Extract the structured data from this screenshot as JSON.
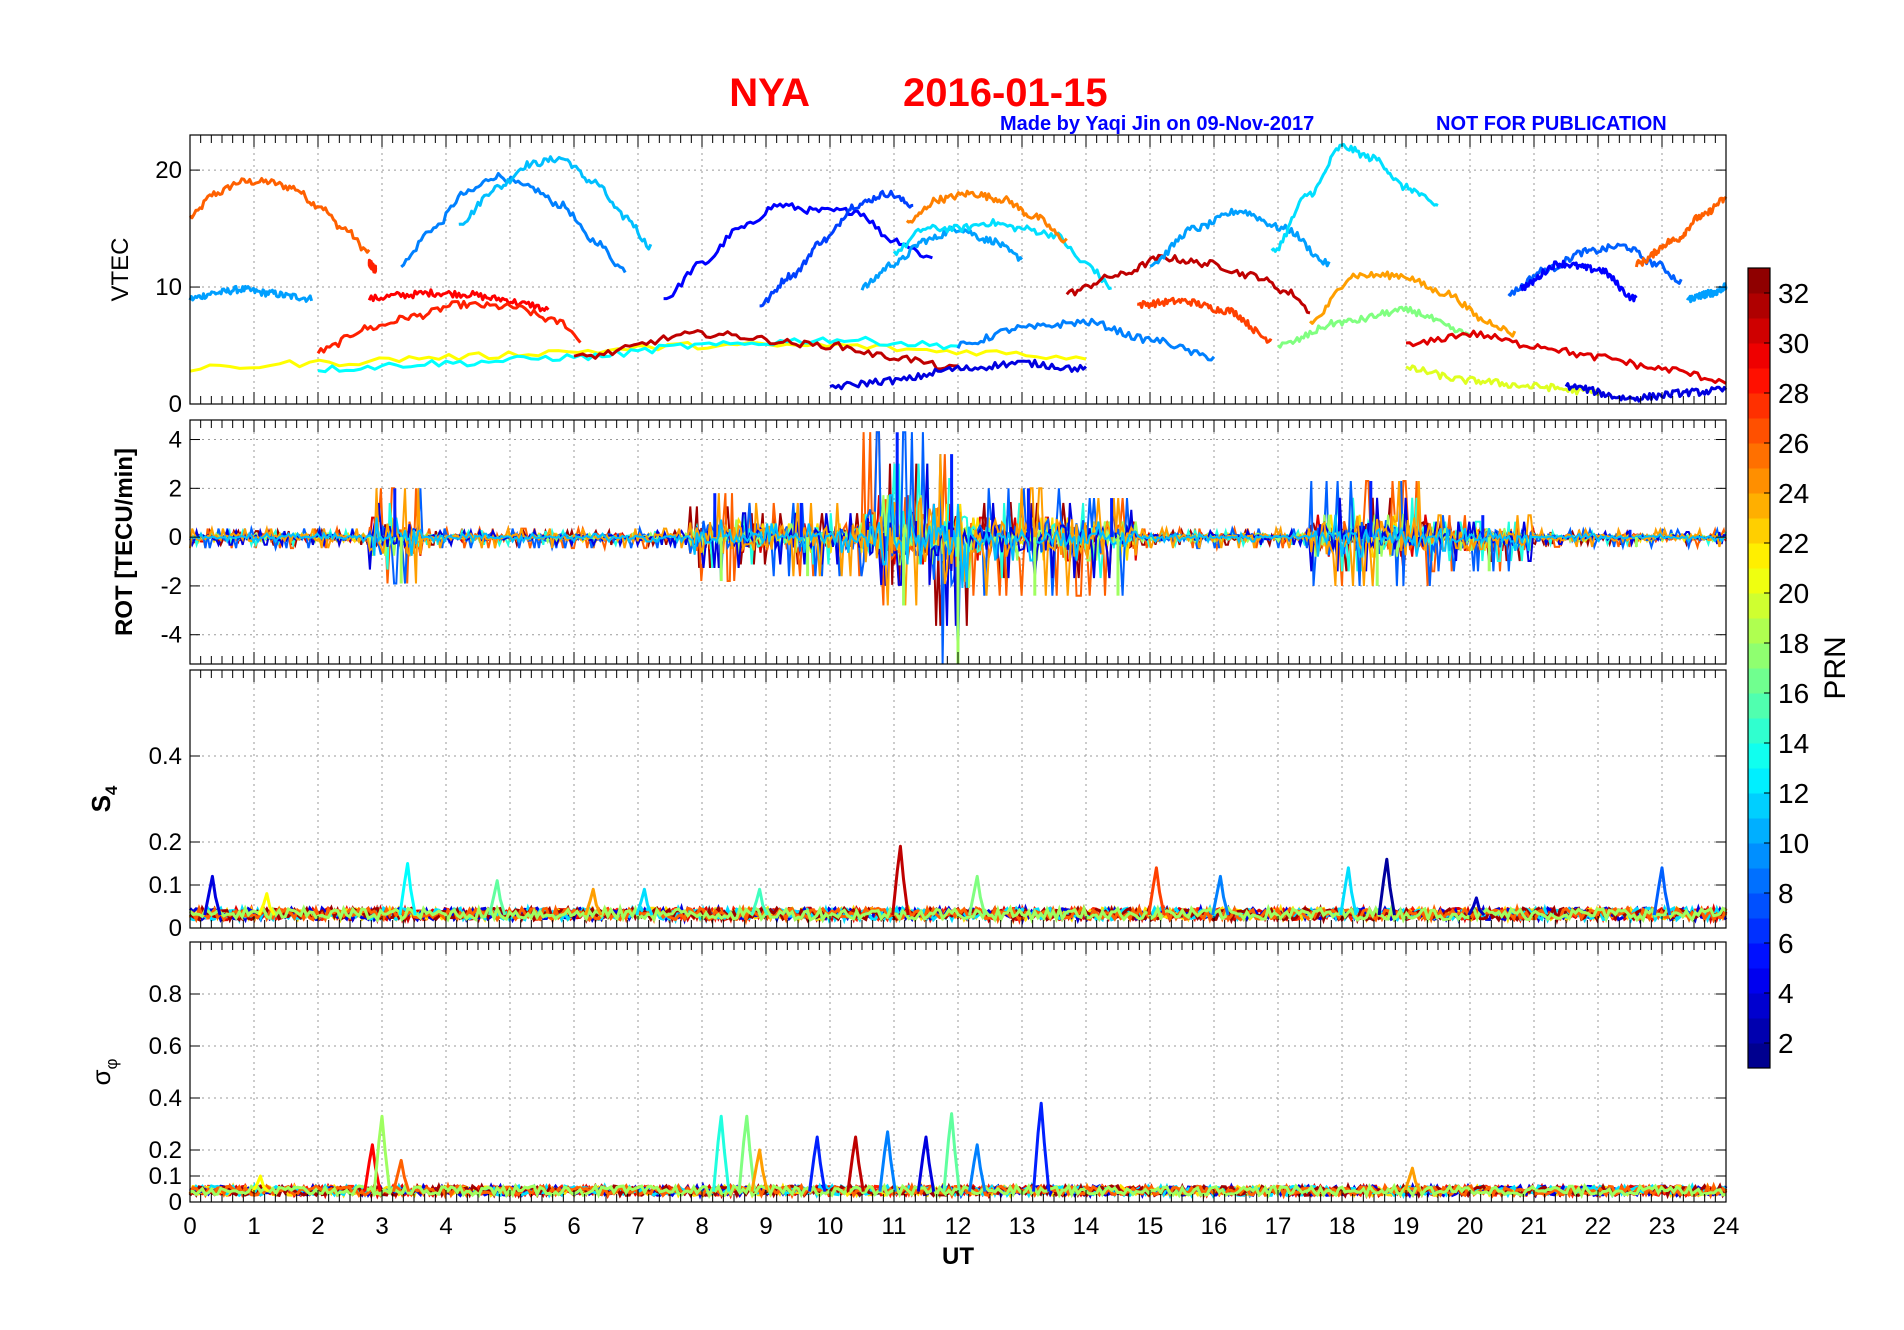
{
  "figure": {
    "station": "NYA",
    "date": "2016-01-15",
    "credit": "Made by Yaqi Jin on 09-Nov-2017",
    "notice": "NOT FOR PUBLICATION",
    "title_color": "#ff0000",
    "credit_color": "#0000ff"
  },
  "chart_data": [
    {
      "type": "line",
      "panel": "vtec",
      "ylabel": "VTEC",
      "xlim": [
        0,
        24
      ],
      "ylim": [
        0,
        23
      ],
      "yticks": [
        0,
        10,
        20
      ],
      "series": [
        {
          "prn": 26,
          "x": [
            0,
            0.4,
            0.8,
            1.2,
            1.6,
            2.0,
            2.4,
            2.8
          ],
          "values": [
            16,
            18,
            19,
            19,
            18.5,
            17,
            15,
            13
          ]
        },
        {
          "prn": 28,
          "x": [
            2.8,
            2.9
          ],
          "values": [
            12,
            11.5
          ]
        },
        {
          "prn": 10,
          "x": [
            0,
            0.4,
            0.8,
            1.2,
            1.6,
            1.9
          ],
          "values": [
            9,
            9.5,
            9.8,
            9.5,
            9.2,
            9
          ]
        },
        {
          "prn": 9,
          "x": [
            3.3,
            3.8,
            4.3,
            4.8,
            5.3,
            5.8,
            6.3,
            6.8
          ],
          "values": [
            12,
            15,
            18,
            19.5,
            18.5,
            17,
            14,
            11.5
          ]
        },
        {
          "prn": 11,
          "x": [
            4.2,
            4.8,
            5.3,
            5.8,
            6.3,
            6.8,
            7.2
          ],
          "values": [
            15.5,
            18.5,
            20.5,
            21,
            19,
            16,
            13.5
          ]
        },
        {
          "prn": 29,
          "x": [
            2.8,
            3.3,
            3.8,
            4.3,
            4.8,
            5.3,
            5.6
          ],
          "values": [
            9,
            9.3,
            9.5,
            9.4,
            9,
            8.5,
            8
          ]
        },
        {
          "prn": 28,
          "x": [
            2.0,
            2.8,
            3.5,
            4.2,
            5.0,
            5.8,
            6.1
          ],
          "values": [
            4.5,
            6.5,
            7.5,
            8.5,
            8.3,
            7,
            5.5
          ]
        },
        {
          "prn": 5,
          "x": [
            7.4,
            8.0,
            8.6,
            9.2,
            9.8,
            10.4,
            11.0,
            11.6
          ],
          "values": [
            9,
            12,
            15,
            17,
            16.5,
            16.5,
            14,
            12.5
          ]
        },
        {
          "prn": 7,
          "x": [
            8.9,
            9.4,
            9.9,
            10.4,
            10.9,
            11.3
          ],
          "values": [
            8.5,
            11,
            14,
            17,
            18,
            17
          ]
        },
        {
          "prn": 10,
          "x": [
            10.5,
            11.0,
            11.5,
            12.0,
            12.5,
            13.0
          ],
          "values": [
            10,
            12,
            14,
            15,
            14,
            12.5
          ]
        },
        {
          "prn": 12,
          "x": [
            11.0,
            11.5,
            12.0,
            12.5,
            13.0,
            13.5,
            14.0,
            14.4
          ],
          "values": [
            13,
            15,
            15,
            15.5,
            15,
            14.5,
            12,
            10
          ]
        },
        {
          "prn": 25,
          "x": [
            11.2,
            11.7,
            12.2,
            12.7,
            13.2,
            13.7
          ],
          "values": [
            15.5,
            17.5,
            18,
            17.5,
            16,
            14
          ]
        },
        {
          "prn": 31,
          "x": [
            13.7,
            14.5,
            15.2,
            15.9,
            16.6,
            17.2,
            17.5
          ],
          "values": [
            9.5,
            11,
            12.5,
            12,
            11,
            9.5,
            8
          ]
        },
        {
          "prn": 27,
          "x": [
            14.8,
            15.5,
            16.2,
            16.9
          ],
          "values": [
            8.5,
            8.8,
            8,
            5.5
          ]
        },
        {
          "prn": 10,
          "x": [
            15.0,
            15.7,
            16.4,
            17.1,
            17.8
          ],
          "values": [
            12,
            15,
            16.5,
            15,
            12
          ]
        },
        {
          "prn": 12,
          "x": [
            16.9,
            17.5,
            18.0,
            18.5,
            19.0,
            19.5
          ],
          "values": [
            13,
            18,
            22,
            21,
            18.5,
            17
          ]
        },
        {
          "prn": 24,
          "x": [
            17.5,
            18.2,
            18.9,
            19.6,
            20.3,
            20.7
          ],
          "values": [
            7,
            11,
            11,
            9.5,
            7,
            6
          ]
        },
        {
          "prn": 8,
          "x": [
            20.6,
            21.2,
            21.8,
            22.4,
            22.9,
            23.3
          ],
          "values": [
            9.5,
            11.5,
            13,
            13.5,
            12,
            10.5
          ]
        },
        {
          "prn": 5,
          "x": [
            20.8,
            21.4,
            22.0,
            22.6
          ],
          "values": [
            10,
            12,
            11.5,
            9
          ]
        },
        {
          "prn": 26,
          "x": [
            22.6,
            23.2,
            23.6,
            24.0
          ],
          "values": [
            12,
            14,
            16,
            17.5
          ]
        },
        {
          "prn": 10,
          "x": [
            23.4,
            23.8,
            24.0
          ],
          "values": [
            9,
            9.5,
            10
          ]
        },
        {
          "prn": 21,
          "x": [
            0,
            2,
            4,
            6,
            8,
            10,
            12,
            14
          ],
          "values": [
            3,
            3.5,
            4,
            4.5,
            5,
            5,
            4.5,
            4
          ]
        },
        {
          "prn": 13,
          "x": [
            2,
            4,
            6,
            8,
            10,
            12
          ],
          "values": [
            3,
            3.5,
            4,
            5,
            5.5,
            5
          ]
        },
        {
          "prn": 31,
          "x": [
            6,
            8,
            10,
            11,
            12
          ],
          "values": [
            4,
            6,
            5,
            4,
            3
          ]
        },
        {
          "prn": 4,
          "x": [
            10,
            11,
            12,
            13,
            14
          ],
          "values": [
            1.5,
            2,
            3,
            3.5,
            3
          ]
        },
        {
          "prn": 9,
          "x": [
            12,
            13,
            14,
            15,
            16
          ],
          "values": [
            5,
            6.5,
            7,
            5.5,
            4
          ]
        },
        {
          "prn": 17,
          "x": [
            17.0,
            18.0,
            19.0,
            20.0
          ],
          "values": [
            5,
            7,
            8,
            6
          ]
        },
        {
          "prn": 30,
          "x": [
            19,
            20,
            21,
            22,
            23,
            24
          ],
          "values": [
            5,
            6,
            5,
            4,
            3,
            2
          ]
        },
        {
          "prn": 20,
          "x": [
            19,
            20,
            21,
            22
          ],
          "values": [
            3,
            2,
            1.5,
            1
          ]
        },
        {
          "prn": 4,
          "x": [
            21.5,
            22.5,
            23.5,
            24.0
          ],
          "values": [
            1.5,
            0.5,
            1,
            1.2
          ]
        }
      ]
    },
    {
      "type": "line",
      "panel": "rot",
      "ylabel": "ROT [TECU/min]",
      "xlim": [
        0,
        24
      ],
      "ylim": [
        -5.2,
        4.8
      ],
      "yticks": [
        -4,
        -2,
        0,
        2,
        4
      ],
      "baseline": 0,
      "activity": [
        {
          "x": [
            2.8,
            3.6
          ],
          "max": 2.0,
          "min": -1.9
        },
        {
          "x": [
            7.8,
            8.6
          ],
          "max": 1.8,
          "min": -1.8
        },
        {
          "x": [
            8.6,
            10.5
          ],
          "max": 1.4,
          "min": -1.6
        },
        {
          "x": [
            10.5,
            11.6
          ],
          "max": 4.3,
          "min": -2.8
        },
        {
          "x": [
            11.6,
            12.2
          ],
          "max": 3.4,
          "min": -5.2
        },
        {
          "x": [
            12.2,
            14.0
          ],
          "max": 2.0,
          "min": -2.4
        },
        {
          "x": [
            14.0,
            14.8
          ],
          "max": 1.6,
          "min": -2.4
        },
        {
          "x": [
            17.5,
            19.4
          ],
          "max": 2.3,
          "min": -2.0
        },
        {
          "x": [
            19.4,
            21.0
          ],
          "max": 0.9,
          "min": -1.4
        },
        {
          "x": [
            21.0,
            24.0
          ],
          "max": 0.3,
          "min": -0.4
        }
      ]
    },
    {
      "type": "line",
      "panel": "s4",
      "ylabel": "S4",
      "ylabel_main": "S",
      "ylabel_sub": "4",
      "xlim": [
        0,
        24
      ],
      "ylim": [
        0,
        0.6
      ],
      "yticks": [
        0,
        0.1,
        0.2,
        0.4
      ],
      "baseline": 0.03,
      "peaks": [
        {
          "x": 0.35,
          "value": 0.12,
          "prn": 4
        },
        {
          "x": 1.2,
          "value": 0.08,
          "prn": 21
        },
        {
          "x": 3.4,
          "value": 0.15,
          "prn": 13
        },
        {
          "x": 4.8,
          "value": 0.11,
          "prn": 16
        },
        {
          "x": 6.3,
          "value": 0.09,
          "prn": 24
        },
        {
          "x": 7.1,
          "value": 0.09,
          "prn": 12
        },
        {
          "x": 8.9,
          "value": 0.09,
          "prn": 15
        },
        {
          "x": 11.1,
          "value": 0.19,
          "prn": 31
        },
        {
          "x": 12.3,
          "value": 0.12,
          "prn": 17
        },
        {
          "x": 15.1,
          "value": 0.14,
          "prn": 27
        },
        {
          "x": 16.1,
          "value": 0.12,
          "prn": 9
        },
        {
          "x": 18.1,
          "value": 0.14,
          "prn": 12
        },
        {
          "x": 18.7,
          "value": 0.16,
          "prn": 2
        },
        {
          "x": 20.1,
          "value": 0.07,
          "prn": 3
        },
        {
          "x": 23.0,
          "value": 0.14,
          "prn": 8
        }
      ]
    },
    {
      "type": "line",
      "panel": "sigma_phi",
      "ylabel": "σφ",
      "ylabel_main": "σ",
      "ylabel_sub": "φ",
      "xlabel": "UT",
      "xlim": [
        0,
        24
      ],
      "ylim": [
        0,
        1.0
      ],
      "xticks": [
        0,
        1,
        2,
        3,
        4,
        5,
        6,
        7,
        8,
        9,
        10,
        11,
        12,
        13,
        14,
        15,
        16,
        17,
        18,
        19,
        20,
        21,
        22,
        23,
        24
      ],
      "yticks": [
        0,
        0.1,
        0.2,
        0.4,
        0.6,
        0.8
      ],
      "baseline": 0.04,
      "peaks": [
        {
          "x": 2.85,
          "value": 0.22,
          "prn": 29
        },
        {
          "x": 3.0,
          "value": 0.33,
          "prn": 18
        },
        {
          "x": 3.3,
          "value": 0.16,
          "prn": 26
        },
        {
          "x": 1.1,
          "value": 0.1,
          "prn": 21
        },
        {
          "x": 8.3,
          "value": 0.33,
          "prn": 14
        },
        {
          "x": 8.7,
          "value": 0.33,
          "prn": 17
        },
        {
          "x": 8.9,
          "value": 0.2,
          "prn": 24
        },
        {
          "x": 9.8,
          "value": 0.25,
          "prn": 6
        },
        {
          "x": 10.4,
          "value": 0.25,
          "prn": 31
        },
        {
          "x": 10.9,
          "value": 0.27,
          "prn": 9
        },
        {
          "x": 11.5,
          "value": 0.25,
          "prn": 4
        },
        {
          "x": 11.9,
          "value": 0.34,
          "prn": 16
        },
        {
          "x": 12.3,
          "value": 0.22,
          "prn": 9
        },
        {
          "x": 13.3,
          "value": 0.38,
          "prn": 6
        },
        {
          "x": 19.1,
          "value": 0.13,
          "prn": 24
        }
      ]
    },
    {
      "type": "heatmap",
      "panel": "colorbar",
      "label": "PRN",
      "range": [
        1,
        33
      ],
      "ticks": [
        2,
        4,
        6,
        8,
        10,
        12,
        14,
        16,
        18,
        20,
        22,
        24,
        26,
        28,
        30,
        32
      ],
      "colormap": "jet"
    }
  ]
}
